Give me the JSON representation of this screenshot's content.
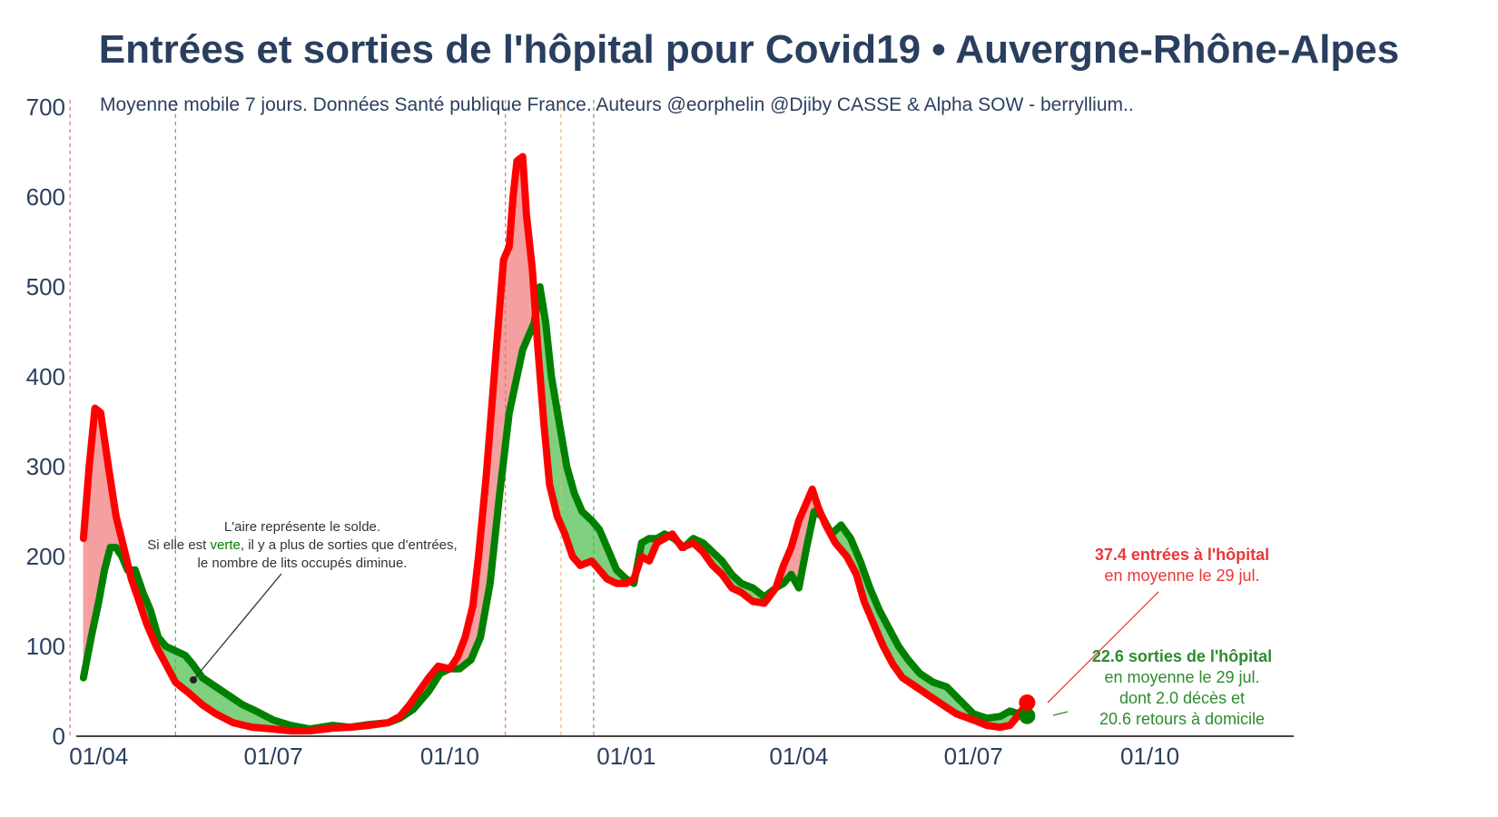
{
  "title": {
    "part1": "Entrées et sorties de l'hôpital",
    "part2": " pour Covid19 • ",
    "part3": "Auvergne-Rhône-Alpes"
  },
  "colors": {
    "entries": "#ff0000",
    "exits": "#008000",
    "fill_red": "#f4a0a0",
    "fill_green": "#7fd07f",
    "text": "#2a3f5f"
  },
  "chart_data": {
    "type": "line",
    "subtitle": "Moyenne mobile 7 jours. Données Santé publique France. Auteurs @eorphelin @Djiby CASSE & Alpha SOW - berryllium..",
    "xlabel": "",
    "ylabel": "",
    "xlim": [
      "2020-03-16",
      "2021-12-15"
    ],
    "ylim": [
      0,
      700
    ],
    "yticks": [
      0,
      100,
      200,
      300,
      400,
      500,
      600,
      700
    ],
    "xticks": [
      {
        "date": "2020-04-01",
        "label": "01/04"
      },
      {
        "date": "2020-07-01",
        "label": "01/07"
      },
      {
        "date": "2020-10-01",
        "label": "01/10"
      },
      {
        "date": "2021-01-01",
        "label": "01/01"
      },
      {
        "date": "2021-04-01",
        "label": "01/04"
      },
      {
        "date": "2021-07-01",
        "label": "01/07"
      },
      {
        "date": "2021-10-01",
        "label": "01/10"
      }
    ],
    "vlines": [
      {
        "date": "2020-03-17",
        "color": "#e07070"
      },
      {
        "date": "2020-05-11",
        "color": "#5aaa5a"
      },
      {
        "date": "2020-10-30",
        "color": "#e07070"
      },
      {
        "date": "2020-11-28",
        "color": "#f0b070"
      },
      {
        "date": "2020-12-15",
        "color": "#5aaa5a"
      }
    ],
    "series": [
      {
        "name": "entrées",
        "color": "#ff0000",
        "points": [
          [
            "2020-03-24",
            220
          ],
          [
            "2020-03-27",
            300
          ],
          [
            "2020-03-30",
            365
          ],
          [
            "2020-04-02",
            360
          ],
          [
            "2020-04-06",
            300
          ],
          [
            "2020-04-10",
            245
          ],
          [
            "2020-04-14",
            210
          ],
          [
            "2020-04-18",
            175
          ],
          [
            "2020-04-22",
            150
          ],
          [
            "2020-04-26",
            125
          ],
          [
            "2020-05-01",
            100
          ],
          [
            "2020-05-06",
            80
          ],
          [
            "2020-05-11",
            60
          ],
          [
            "2020-05-18",
            48
          ],
          [
            "2020-05-25",
            35
          ],
          [
            "2020-06-01",
            25
          ],
          [
            "2020-06-10",
            15
          ],
          [
            "2020-06-20",
            10
          ],
          [
            "2020-07-01",
            8
          ],
          [
            "2020-07-10",
            6
          ],
          [
            "2020-07-20",
            6
          ],
          [
            "2020-08-01",
            9
          ],
          [
            "2020-08-10",
            10
          ],
          [
            "2020-08-20",
            12
          ],
          [
            "2020-08-30",
            15
          ],
          [
            "2020-09-05",
            22
          ],
          [
            "2020-09-10",
            35
          ],
          [
            "2020-09-15",
            50
          ],
          [
            "2020-09-20",
            65
          ],
          [
            "2020-09-25",
            78
          ],
          [
            "2020-10-01",
            75
          ],
          [
            "2020-10-05",
            88
          ],
          [
            "2020-10-09",
            110
          ],
          [
            "2020-10-13",
            145
          ],
          [
            "2020-10-16",
            200
          ],
          [
            "2020-10-20",
            290
          ],
          [
            "2020-10-23",
            370
          ],
          [
            "2020-10-26",
            450
          ],
          [
            "2020-10-29",
            530
          ],
          [
            "2020-11-01",
            545
          ],
          [
            "2020-11-03",
            600
          ],
          [
            "2020-11-05",
            640
          ],
          [
            "2020-11-08",
            645
          ],
          [
            "2020-11-10",
            580
          ],
          [
            "2020-11-13",
            520
          ],
          [
            "2020-11-16",
            430
          ],
          [
            "2020-11-19",
            350
          ],
          [
            "2020-11-22",
            280
          ],
          [
            "2020-11-26",
            245
          ],
          [
            "2020-11-30",
            225
          ],
          [
            "2020-12-04",
            200
          ],
          [
            "2020-12-08",
            190
          ],
          [
            "2020-12-14",
            195
          ],
          [
            "2020-12-18",
            185
          ],
          [
            "2020-12-22",
            175
          ],
          [
            "2020-12-27",
            170
          ],
          [
            "2021-01-01",
            170
          ],
          [
            "2021-01-05",
            175
          ],
          [
            "2021-01-09",
            200
          ],
          [
            "2021-01-13",
            195
          ],
          [
            "2021-01-17",
            215
          ],
          [
            "2021-01-21",
            220
          ],
          [
            "2021-01-25",
            225
          ],
          [
            "2021-01-30",
            210
          ],
          [
            "2021-02-05",
            215
          ],
          [
            "2021-02-10",
            205
          ],
          [
            "2021-02-15",
            190
          ],
          [
            "2021-02-20",
            180
          ],
          [
            "2021-02-25",
            165
          ],
          [
            "2021-03-02",
            160
          ],
          [
            "2021-03-08",
            150
          ],
          [
            "2021-03-14",
            148
          ],
          [
            "2021-03-20",
            165
          ],
          [
            "2021-03-24",
            190
          ],
          [
            "2021-03-28",
            210
          ],
          [
            "2021-04-01",
            240
          ],
          [
            "2021-04-05",
            260
          ],
          [
            "2021-04-08",
            275
          ],
          [
            "2021-04-11",
            255
          ],
          [
            "2021-04-15",
            235
          ],
          [
            "2021-04-20",
            215
          ],
          [
            "2021-04-26",
            200
          ],
          [
            "2021-05-01",
            180
          ],
          [
            "2021-05-05",
            150
          ],
          [
            "2021-05-10",
            125
          ],
          [
            "2021-05-15",
            100
          ],
          [
            "2021-05-20",
            80
          ],
          [
            "2021-05-25",
            65
          ],
          [
            "2021-06-01",
            55
          ],
          [
            "2021-06-08",
            45
          ],
          [
            "2021-06-15",
            35
          ],
          [
            "2021-06-22",
            25
          ],
          [
            "2021-07-01",
            18
          ],
          [
            "2021-07-08",
            12
          ],
          [
            "2021-07-15",
            10
          ],
          [
            "2021-07-20",
            12
          ],
          [
            "2021-07-24",
            22
          ],
          [
            "2021-07-29",
            37.4
          ]
        ]
      },
      {
        "name": "sorties",
        "color": "#008000",
        "points": [
          [
            "2020-03-24",
            65
          ],
          [
            "2020-03-28",
            110
          ],
          [
            "2020-04-01",
            150
          ],
          [
            "2020-04-04",
            185
          ],
          [
            "2020-04-07",
            210
          ],
          [
            "2020-04-10",
            210
          ],
          [
            "2020-04-13",
            200
          ],
          [
            "2020-04-16",
            185
          ],
          [
            "2020-04-20",
            185
          ],
          [
            "2020-04-24",
            160
          ],
          [
            "2020-04-28",
            140
          ],
          [
            "2020-05-02",
            110
          ],
          [
            "2020-05-06",
            100
          ],
          [
            "2020-05-11",
            95
          ],
          [
            "2020-05-16",
            90
          ],
          [
            "2020-05-20",
            80
          ],
          [
            "2020-05-25",
            65
          ],
          [
            "2020-06-01",
            55
          ],
          [
            "2020-06-08",
            45
          ],
          [
            "2020-06-15",
            35
          ],
          [
            "2020-06-22",
            28
          ],
          [
            "2020-07-01",
            18
          ],
          [
            "2020-07-10",
            12
          ],
          [
            "2020-07-20",
            8
          ],
          [
            "2020-08-01",
            12
          ],
          [
            "2020-08-10",
            10
          ],
          [
            "2020-08-20",
            13
          ],
          [
            "2020-08-30",
            15
          ],
          [
            "2020-09-05",
            20
          ],
          [
            "2020-09-12",
            30
          ],
          [
            "2020-09-20",
            50
          ],
          [
            "2020-09-26",
            70
          ],
          [
            "2020-10-01",
            75
          ],
          [
            "2020-10-06",
            75
          ],
          [
            "2020-10-12",
            85
          ],
          [
            "2020-10-17",
            110
          ],
          [
            "2020-10-22",
            170
          ],
          [
            "2020-10-27",
            270
          ],
          [
            "2020-11-01",
            360
          ],
          [
            "2020-11-05",
            400
          ],
          [
            "2020-11-08",
            430
          ],
          [
            "2020-11-11",
            445
          ],
          [
            "2020-11-14",
            460
          ],
          [
            "2020-11-17",
            500
          ],
          [
            "2020-11-20",
            460
          ],
          [
            "2020-11-23",
            400
          ],
          [
            "2020-11-27",
            350
          ],
          [
            "2020-12-01",
            300
          ],
          [
            "2020-12-05",
            270
          ],
          [
            "2020-12-09",
            250
          ],
          [
            "2020-12-14",
            240
          ],
          [
            "2020-12-18",
            230
          ],
          [
            "2020-12-22",
            210
          ],
          [
            "2020-12-27",
            185
          ],
          [
            "2021-01-01",
            175
          ],
          [
            "2021-01-05",
            170
          ],
          [
            "2021-01-09",
            215
          ],
          [
            "2021-01-13",
            220
          ],
          [
            "2021-01-17",
            220
          ],
          [
            "2021-01-21",
            225
          ],
          [
            "2021-01-26",
            220
          ],
          [
            "2021-01-31",
            210
          ],
          [
            "2021-02-05",
            220
          ],
          [
            "2021-02-10",
            215
          ],
          [
            "2021-02-15",
            205
          ],
          [
            "2021-02-20",
            195
          ],
          [
            "2021-02-25",
            180
          ],
          [
            "2021-03-02",
            170
          ],
          [
            "2021-03-08",
            165
          ],
          [
            "2021-03-14",
            155
          ],
          [
            "2021-03-20",
            165
          ],
          [
            "2021-03-24",
            170
          ],
          [
            "2021-03-28",
            180
          ],
          [
            "2021-04-01",
            165
          ],
          [
            "2021-04-05",
            210
          ],
          [
            "2021-04-09",
            250
          ],
          [
            "2021-04-13",
            245
          ],
          [
            "2021-04-18",
            225
          ],
          [
            "2021-04-23",
            235
          ],
          [
            "2021-04-28",
            220
          ],
          [
            "2021-05-03",
            195
          ],
          [
            "2021-05-08",
            165
          ],
          [
            "2021-05-13",
            140
          ],
          [
            "2021-05-18",
            120
          ],
          [
            "2021-05-23",
            100
          ],
          [
            "2021-05-28",
            85
          ],
          [
            "2021-06-03",
            70
          ],
          [
            "2021-06-10",
            60
          ],
          [
            "2021-06-17",
            55
          ],
          [
            "2021-06-24",
            40
          ],
          [
            "2021-07-01",
            25
          ],
          [
            "2021-07-08",
            20
          ],
          [
            "2021-07-15",
            22
          ],
          [
            "2021-07-20",
            28
          ],
          [
            "2021-07-25",
            25
          ],
          [
            "2021-07-29",
            22.6
          ]
        ]
      }
    ],
    "annotations": {
      "note_line1": "L'aire représente le solde.",
      "note_line2_pre": "Si elle est ",
      "note_line2_word": "verte",
      "note_line2_post": ", il y a plus de sorties que d'entrées,",
      "note_line3": "le nombre de lits occupés diminue.",
      "red_line1": "37.4 entrées à l'hôpital",
      "red_line2": "en moyenne le 29 jul.",
      "green_line1": "22.6 sorties de l'hôpital",
      "green_line2": "en moyenne le 29 jul.",
      "green_line3": "dont 2.0 décès et",
      "green_line4": "20.6 retours à domicile"
    }
  }
}
